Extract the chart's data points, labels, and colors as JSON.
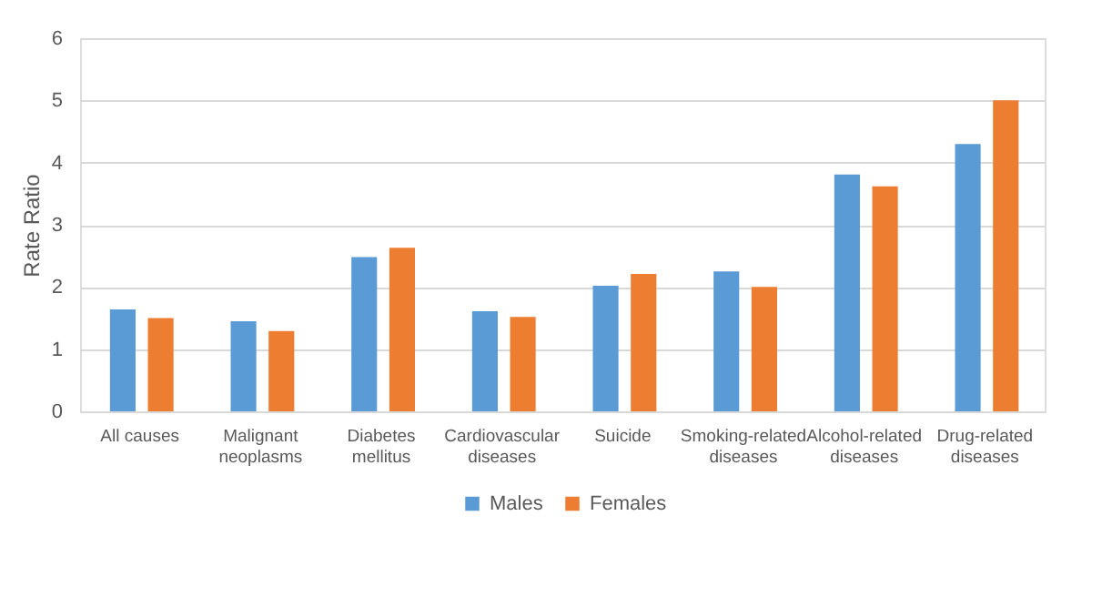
{
  "chart_data": {
    "type": "bar",
    "ylabel": "Rate Ratio",
    "categories": [
      "All causes",
      "Malignant neoplasms",
      "Diabetes mellitus",
      "Cardiovascular diseases",
      "Suicide",
      "Smoking-related diseases",
      "Alcohol-related diseases",
      "Drug-related diseases"
    ],
    "series": [
      {
        "name": "Males",
        "color": "#5b9bd5",
        "values": [
          1.64,
          1.45,
          2.48,
          1.61,
          2.02,
          2.25,
          3.81,
          4.3
        ]
      },
      {
        "name": "Females",
        "color": "#ed7d31",
        "values": [
          1.5,
          1.29,
          2.63,
          1.52,
          2.21,
          2.0,
          3.62,
          5.0
        ]
      }
    ],
    "ylim": [
      0,
      6
    ],
    "yticks": [
      0,
      1,
      2,
      3,
      4,
      5,
      6
    ],
    "grid": "y",
    "legend": "bottom"
  }
}
